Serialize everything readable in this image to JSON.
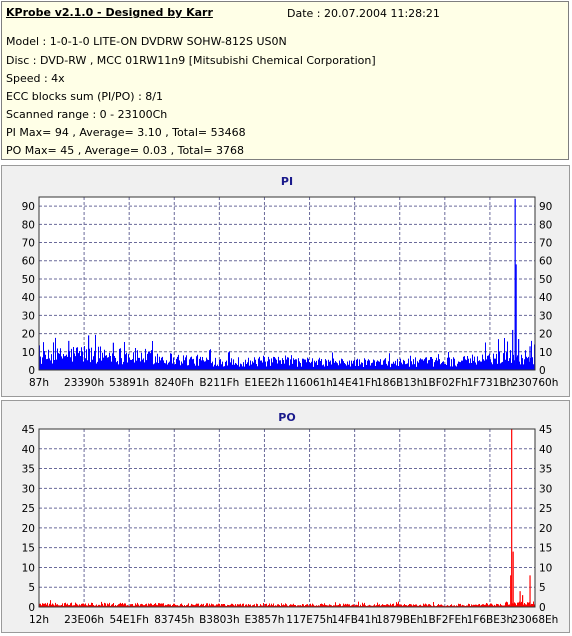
{
  "header": {
    "title": "KProbe v2.1.0 - Designed by Karr",
    "date": "Date : 20.07.2004 11:28:21",
    "lines": [
      "Model : 1-0-1-0 LITE-ON DVDRW SOHW-812S  US0N",
      "Disc : DVD-RW , MCC 01RW11n9 [Mitsubishi Chemical Corporation]",
      "Speed : 4x",
      "ECC blocks sum (PI/PO) : 8/1",
      "Scanned range : 0 - 23100Ch",
      "PI Max= 94 , Average= 3.10 , Total= 53468",
      "PO Max= 45 , Average= 0.03 , Total= 3768"
    ]
  },
  "chart_data": [
    {
      "type": "bar",
      "title": "PI",
      "color": "#0000ff",
      "ylim": [
        0,
        95
      ],
      "yticks": [
        0,
        10,
        20,
        30,
        40,
        50,
        60,
        70,
        80,
        90
      ],
      "xticks": [
        "87h",
        "23390h",
        "53891h",
        "8240Fh",
        "B211Fh",
        "E1EE2h",
        "116061h",
        "14E41Fh",
        "186B13h",
        "1BF02Fh",
        "1F731Bh",
        "230760h"
      ],
      "grid": true,
      "profile_x": [
        0,
        0.05,
        0.08,
        0.15,
        0.22,
        0.3,
        0.4,
        0.5,
        0.6,
        0.7,
        0.8,
        0.88,
        0.92,
        0.95,
        0.97,
        1.0
      ],
      "profile_y": [
        7,
        9,
        10,
        9,
        8,
        6,
        5,
        5,
        4.5,
        4.5,
        5,
        5.5,
        8,
        8,
        7,
        9
      ],
      "spikes": [
        {
          "x": 0.96,
          "value": 94
        },
        {
          "x": 0.962,
          "value": 58
        },
        {
          "x": 0.955,
          "value": 22
        },
        {
          "x": 0.967,
          "value": 17
        },
        {
          "x": 0.1,
          "value": 19
        },
        {
          "x": 0.06,
          "value": 16
        },
        {
          "x": 0.15,
          "value": 15
        },
        {
          "x": 0.99,
          "value": 13
        }
      ]
    },
    {
      "type": "bar",
      "title": "PO",
      "color": "#ff0000",
      "ylim": [
        0,
        45
      ],
      "yticks": [
        0,
        5,
        10,
        15,
        20,
        25,
        30,
        35,
        40,
        45
      ],
      "xticks": [
        "12h",
        "23E06h",
        "54E1Fh",
        "83745h",
        "B3803h",
        "E3857h",
        "117E75h",
        "14FB41h",
        "1879BEh",
        "1BF2FEh",
        "1F6BE3h",
        "23068Eh"
      ],
      "grid": true,
      "profile_x": [
        0,
        0.5,
        0.9,
        0.95,
        1.0
      ],
      "profile_y": [
        0.8,
        0.6,
        0.6,
        0.9,
        1.0
      ],
      "spikes": [
        {
          "x": 0.953,
          "value": 45
        },
        {
          "x": 0.956,
          "value": 14
        },
        {
          "x": 0.951,
          "value": 8
        },
        {
          "x": 0.99,
          "value": 8
        },
        {
          "x": 0.975,
          "value": 3
        },
        {
          "x": 0.97,
          "value": 4
        }
      ]
    }
  ]
}
